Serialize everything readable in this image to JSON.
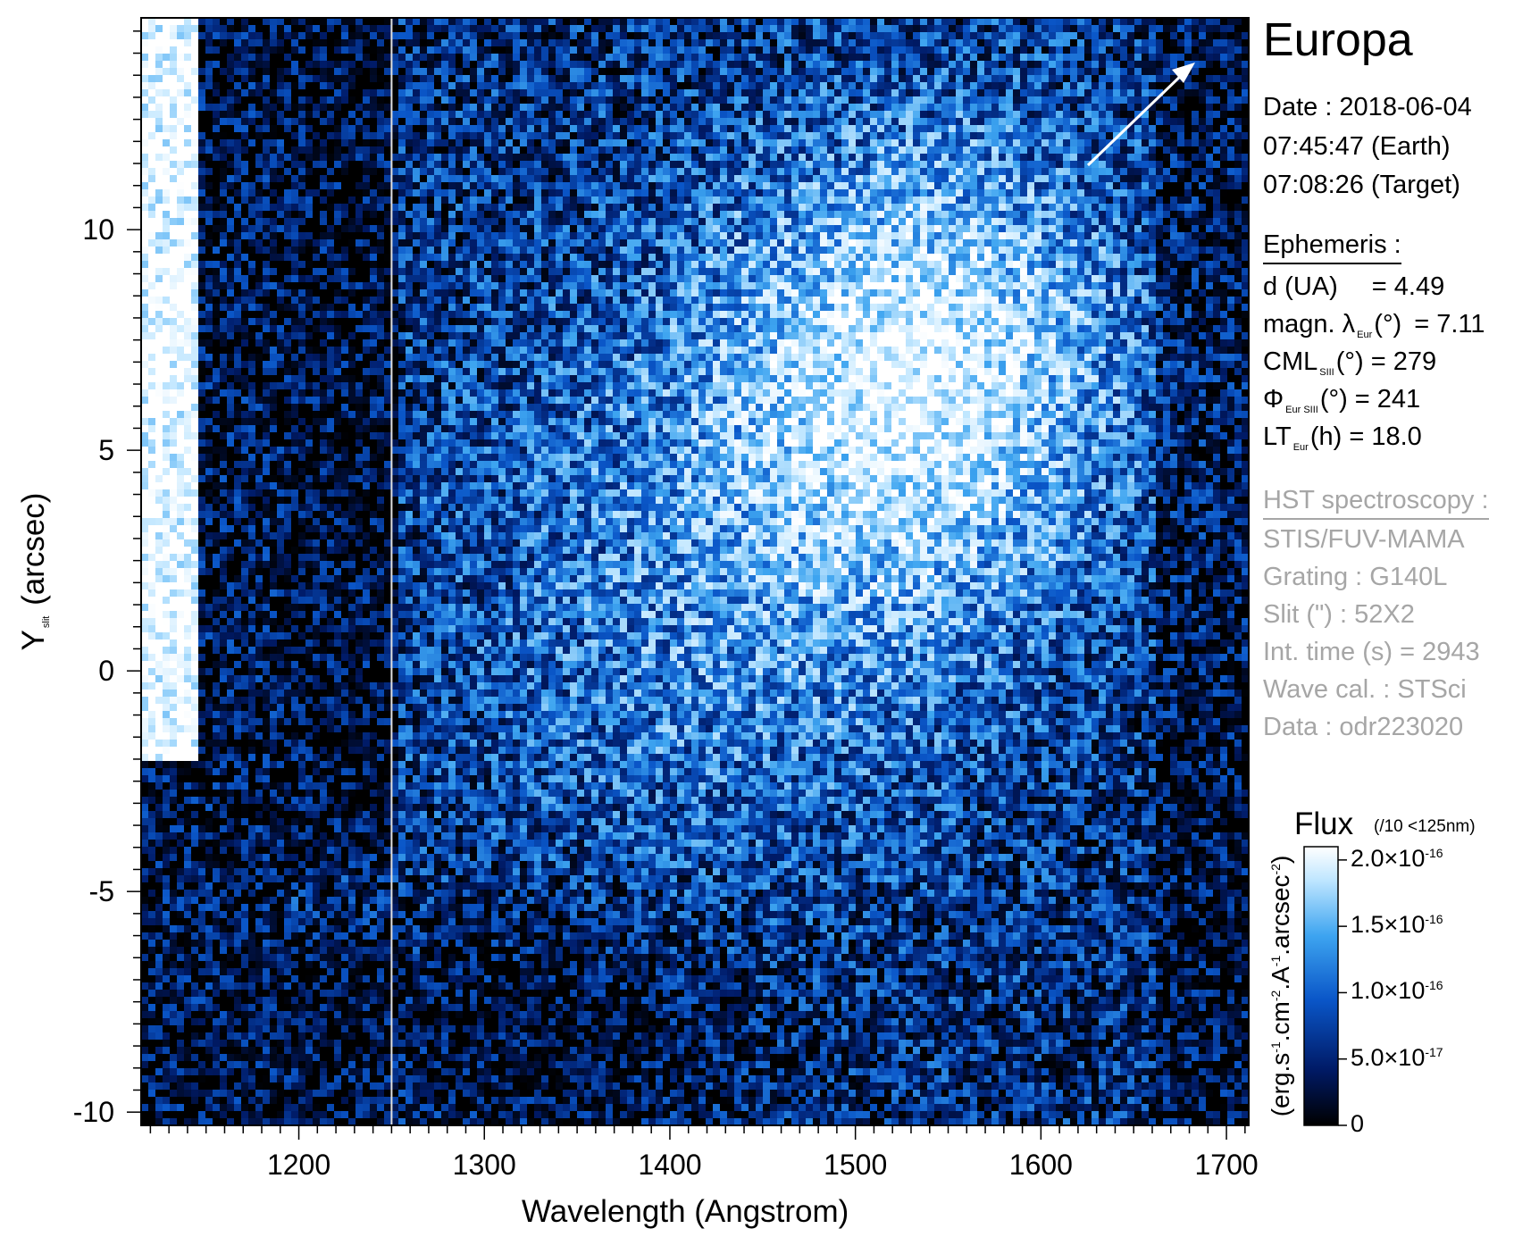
{
  "chart_data": {
    "type": "heatmap",
    "title": "Europa",
    "xlabel": "Wavelength (Angstrom)",
    "ylabel_main": "Y",
    "ylabel_sub": "slit",
    "ylabel_unit": "(arcsec)",
    "xlim": [
      1115,
      1712
    ],
    "ylim": [
      -10.3,
      14.8
    ],
    "x_ticks": [
      1200,
      1300,
      1400,
      1500,
      1600,
      1700
    ],
    "y_ticks": [
      -10,
      -5,
      0,
      5,
      10
    ],
    "x_tick_labels": [
      "1200",
      "1300",
      "1400",
      "1500",
      "1600",
      "1700"
    ],
    "y_tick_labels": [
      "-10",
      "-5",
      "0",
      "5",
      "10"
    ],
    "divider_wavelength": 1250,
    "regions": [
      {
        "name": "Lyman-alpha saturated band",
        "x_range": [
          1115,
          1145
        ],
        "y_range": [
          -2,
          14.8
        ],
        "level": "saturated"
      },
      {
        "name": "slit blocked band",
        "x_range": [
          1190,
          1250
        ],
        "y_range": [
          -10.3,
          14.8
        ],
        "level": "low"
      },
      {
        "name": "bright region",
        "x_center": 1550,
        "y_center": 7,
        "level": "high"
      },
      {
        "name": "dark region",
        "x_center": 1350,
        "y_center": -8,
        "level": "low"
      }
    ],
    "colorbar": {
      "title": "Flux",
      "note": "(/10 <125nm)",
      "unit_parts": [
        "(erg.s",
        "-1",
        ".cm",
        "-2",
        ".A",
        "-1",
        ".arcsec",
        "-2",
        ")"
      ],
      "range": [
        0,
        2.1e-16
      ],
      "ticks": [
        {
          "value": 0,
          "mant": "0",
          "exp": ""
        },
        {
          "value": 5e-17,
          "mant": "5.0×10",
          "exp": "-17"
        },
        {
          "value": 1e-16,
          "mant": "1.0×10",
          "exp": "-16"
        },
        {
          "value": 1.5e-16,
          "mant": "1.5×10",
          "exp": "-16"
        },
        {
          "value": 2e-16,
          "mant": "2.0×10",
          "exp": "-16"
        }
      ],
      "colors": [
        "#000000",
        "#001a66",
        "#0a56c8",
        "#3da4f0",
        "#bfe6ff",
        "#ffffff"
      ]
    }
  },
  "info": {
    "title": "Europa",
    "date_line": "Date : 2018-06-04",
    "earth_time": "07:45:47 (Earth)",
    "target_time": "07:08:26 (Target)",
    "ephemeris_header": "Ephemeris :",
    "d_label": "d (UA)",
    "d_value": "= 4.49",
    "magn_label": "magn. λ",
    "magn_sub": "Eur",
    "magn_unit": "(°)",
    "magn_value": "= 7.11",
    "cml_label": "CML",
    "cml_sub": "SIII",
    "cml_rest": "(°) = 279",
    "phi_label": "Φ",
    "phi_sub": "Eur SIII",
    "phi_rest": "(°) = 241",
    "lt_label": "LT",
    "lt_sub": "Eur",
    "lt_rest": "(h) = 18.0",
    "hst_header": "HST spectroscopy :",
    "instrument": "STIS/FUV-MAMA",
    "grating": "Grating : G140L",
    "slit": "Slit (\") : 52X2",
    "int_time": "Int. time (s) = 2943",
    "wave_cal": "Wave cal. : STSci",
    "data_id": "Data : odr223020"
  }
}
